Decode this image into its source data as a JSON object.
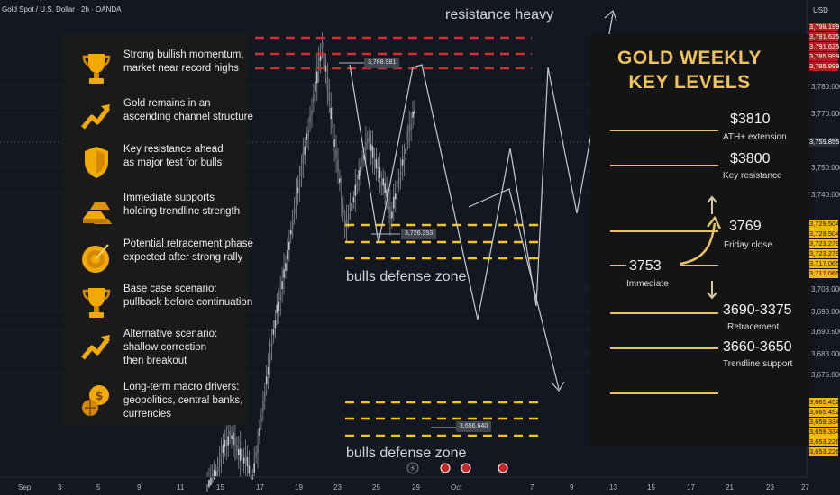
{
  "header": {
    "symbol_line": "Gold Spot / U.S. Dollar · 2h · OANDA",
    "currency": "USD"
  },
  "price_axis": {
    "ticks": [
      "3,780.000",
      "3,770.000",
      "3,750.000",
      "3,740.000",
      "3,708.000",
      "3,698.000",
      "3,690.500",
      "3,683.000",
      "3,675.000"
    ],
    "red_tags": [
      "3,798.199",
      "3,791.625",
      "3,791.625",
      "3,785.999",
      "3,785.999"
    ],
    "current_tag": "3,759.855",
    "yellow_tags_upper": [
      "3,729.504",
      "3,729.504",
      "3,723.279",
      "3,723.279",
      "3,717.065",
      "3,717.065"
    ],
    "yellow_tags_lower": [
      "3,665.452",
      "3,665.452",
      "3,659.334",
      "3,659.334",
      "3,653.226",
      "3,653.226"
    ]
  },
  "date_axis": {
    "ticks": [
      "Sep",
      "3",
      "5",
      "9",
      "11",
      "15",
      "17",
      "19",
      "23",
      "25",
      "29",
      "Oct",
      "7",
      "9",
      "13",
      "15",
      "17",
      "21",
      "23",
      "27"
    ]
  },
  "annotations": {
    "resistance_heavy": "resistance heavy",
    "bulls_defense_upper": "bulls defense zone",
    "bulls_defense_lower": "bulls defense zone",
    "chip_high": "3,788.981",
    "chip_mid": "3,726.353",
    "chip_low": "3,656.640"
  },
  "left_panel": {
    "items": [
      {
        "icon": "trophy-icon",
        "lines": [
          "Strong bullish momentum,",
          "market near record highs"
        ]
      },
      {
        "icon": "trend-arrow-icon",
        "lines": [
          "Gold remains in an",
          "ascending channel structure"
        ]
      },
      {
        "icon": "shield-icon",
        "lines": [
          "Key resistance ahead",
          "as major test for bulls"
        ]
      },
      {
        "icon": "gold-bars-icon",
        "lines": [
          "Immediate supports",
          "holding trendline strength"
        ]
      },
      {
        "icon": "target-icon",
        "lines": [
          "Potential retracement phase",
          "expected after strong rally"
        ]
      },
      {
        "icon": "trophy-icon",
        "lines": [
          "Base case scenario:",
          "pullback before continuation"
        ]
      },
      {
        "icon": "trend-arrow-icon",
        "lines": [
          "Alternative scenario:",
          "shallow correction",
          "then breakout"
        ]
      },
      {
        "icon": "globe-dollar-icon",
        "lines": [
          "Long-term macro drivers:",
          "geopolitics, central banks,",
          "currencies"
        ]
      }
    ]
  },
  "right_panel": {
    "title_line1": "GOLD WEEKLY",
    "title_line2": "KEY LEVELS",
    "levels": [
      {
        "value": "$3810",
        "label": "ATH+ extension"
      },
      {
        "value": "$3800",
        "label": "Key resistance"
      },
      {
        "value": "3769",
        "label": "Friday close"
      },
      {
        "value": "3753",
        "label": "Immediate"
      },
      {
        "value": "3690-3375",
        "label": "Retracement"
      },
      {
        "value": "3660-3650",
        "label": "Trendline support"
      }
    ]
  },
  "colors": {
    "background": "#131722",
    "candle": "#8a8d96",
    "resistance": "#d32f2f",
    "support": "#f5c518",
    "accent_gold": "#e8c266"
  },
  "chart_data": {
    "type": "line",
    "title": "",
    "description_source": "price path approximated from visible candlesticks",
    "x": [
      "Sep 16",
      "Sep 18",
      "Sep 19",
      "Sep 22",
      "Sep 23",
      "Sep 24",
      "Sep 25",
      "Sep 26",
      "Sep 29",
      "Sep 30"
    ],
    "series": [
      {
        "name": "",
        "values": [
          3640,
          3660,
          3645,
          3700,
          3745,
          3792,
          3730,
          3760,
          3735,
          3770
        ]
      }
    ],
    "levels": {
      "resistance": [
        3798.199,
        3791.625,
        3785.999
      ],
      "support_upper": [
        3729.504,
        3723.279,
        3717.065
      ],
      "support_lower": [
        3665.452,
        3659.334,
        3653.226
      ]
    },
    "ylim": [
      3645,
      3800
    ]
  }
}
